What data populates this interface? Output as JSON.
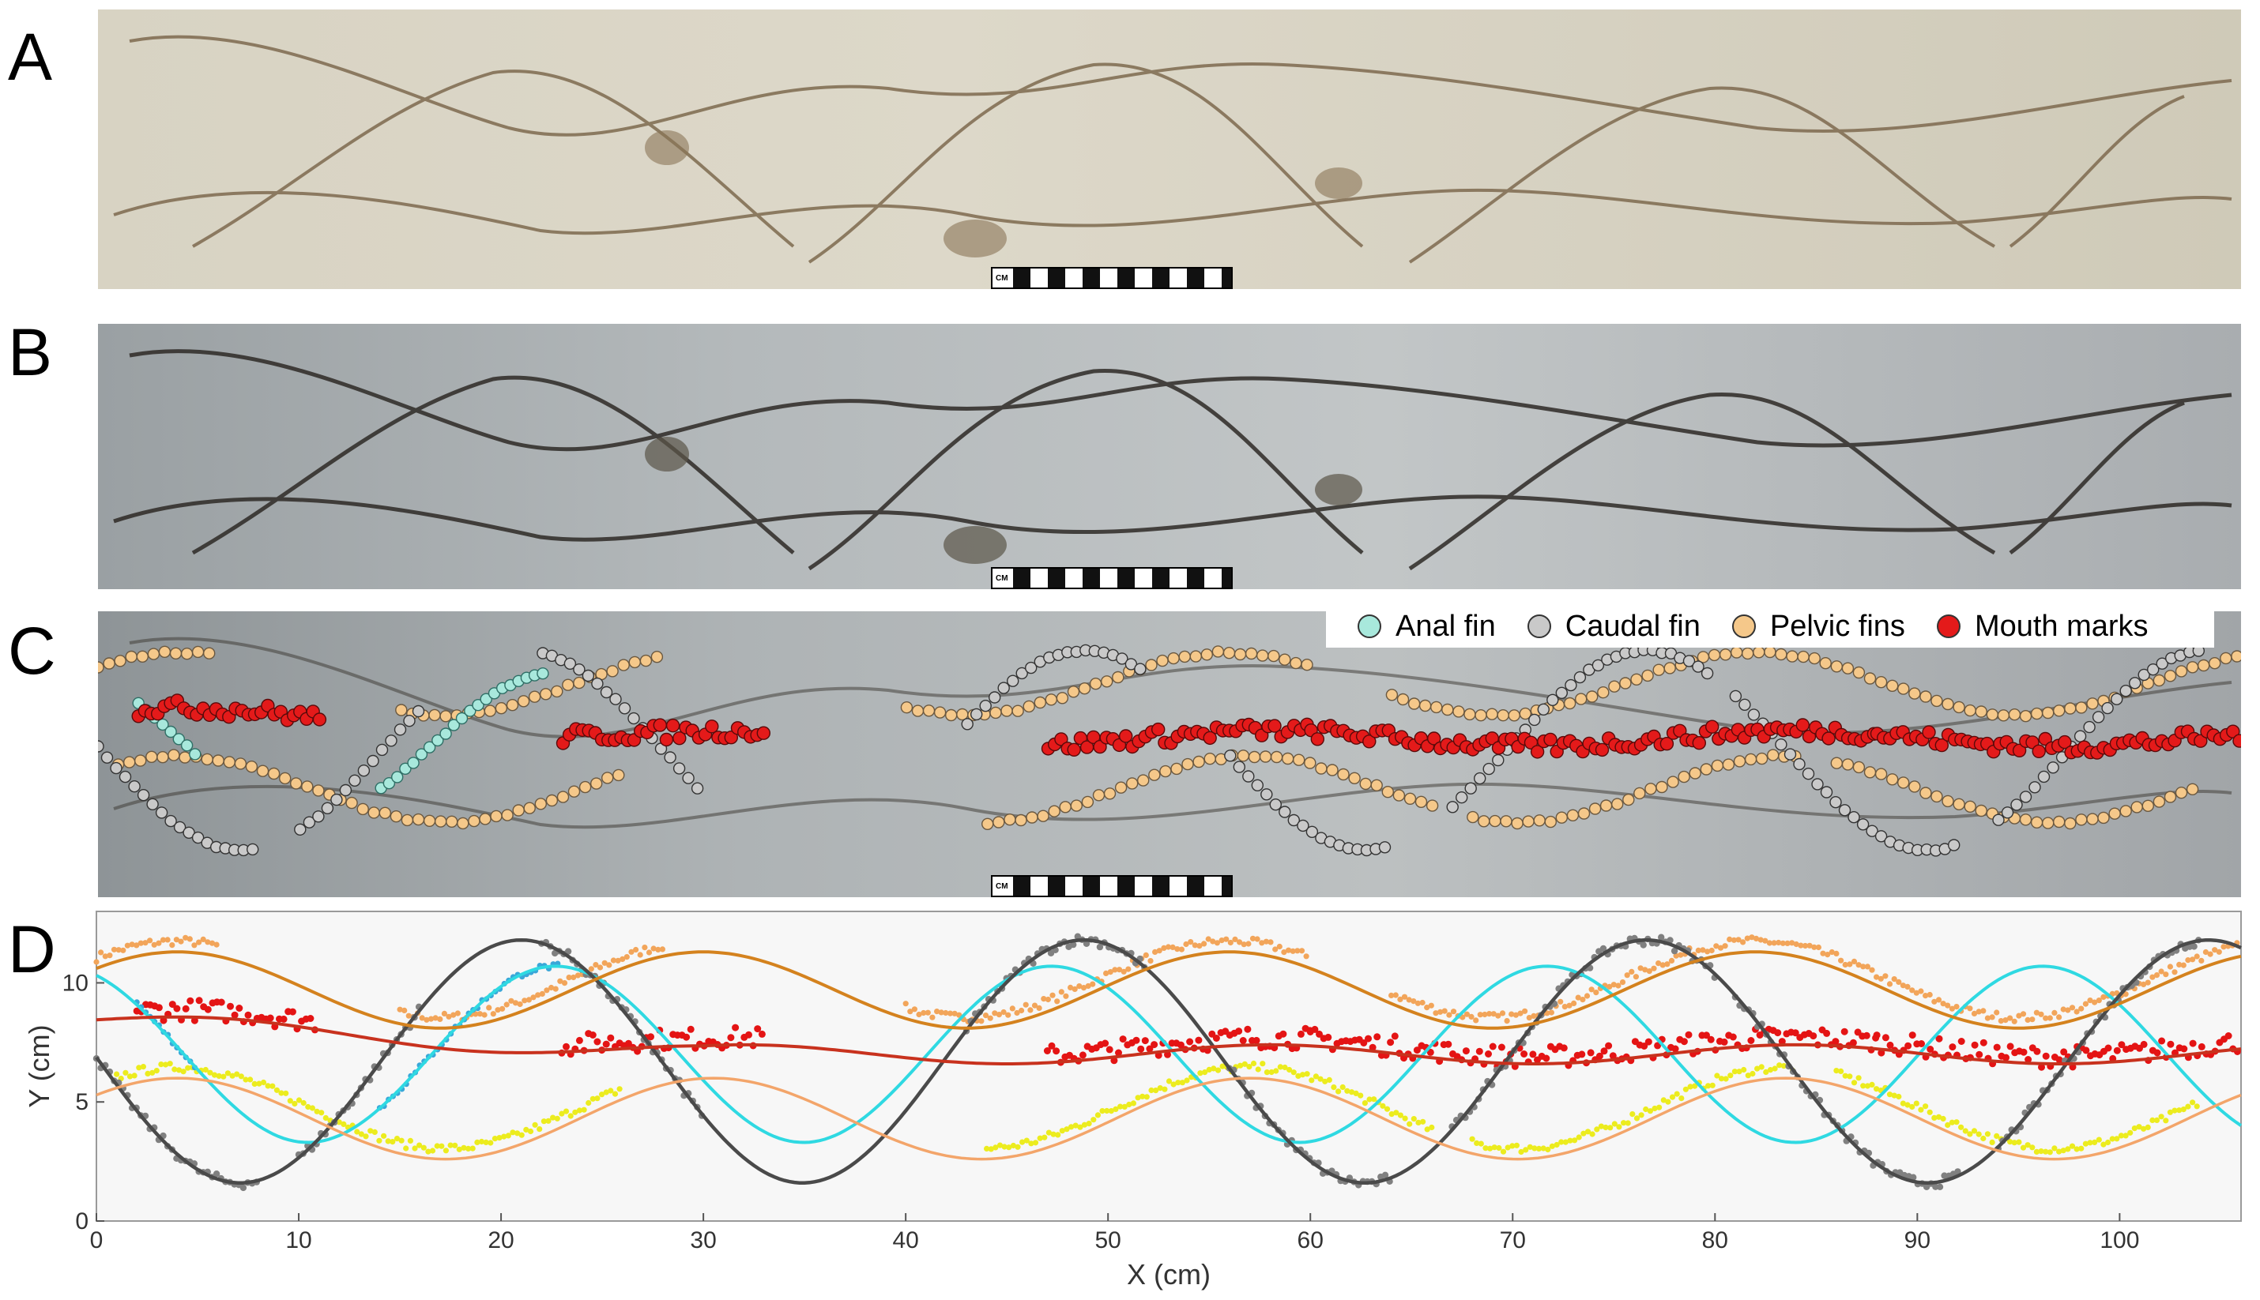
{
  "panels": {
    "a": "A",
    "b": "B",
    "c": "C",
    "d": "D"
  },
  "scale_bar_label": "CM",
  "legend": {
    "items": [
      {
        "label": "Anal fin",
        "color": "#a8e8dc"
      },
      {
        "label": "Caudal fin",
        "color": "#c9c9c9"
      },
      {
        "label": "Pelvic fins",
        "color": "#f5c88a"
      },
      {
        "label": "Mouth marks",
        "color": "#e41a1a"
      }
    ]
  },
  "colors": {
    "cyan": "#2fd9e2",
    "gray": "#4a4a4a",
    "pelvic_upper": "#d4821e",
    "pelvic_lower": "#f3a56a",
    "mouth": "#c8321e",
    "pts_orange": "#f2a55a",
    "pts_yellow": "#ecec1e",
    "pts_red": "#e41414",
    "pts_gray": "#808080",
    "pts_blue": "#3aa7d8"
  },
  "chart_data": {
    "type": "scatter",
    "xlabel": "X (cm)",
    "ylabel": "Y (cm)",
    "xlim": [
      0,
      106
    ],
    "ylim": [
      0,
      13
    ],
    "xticks": [
      0,
      10,
      20,
      30,
      40,
      50,
      60,
      70,
      80,
      90,
      100
    ],
    "yticks": [
      0,
      5,
      10
    ],
    "grid": false,
    "series": [
      {
        "role": "fit",
        "color": "cyan",
        "mean": 7.0,
        "amp": 3.7,
        "period": 24.5,
        "phase_x": 22.7
      },
      {
        "role": "fit",
        "color": "gray",
        "mean": 6.7,
        "amp": 5.1,
        "period": 27.8,
        "phase_x": 21.0
      },
      {
        "role": "fit",
        "color": "pelvic_upper",
        "mean": 9.7,
        "amp": 1.6,
        "period": 26.0,
        "phase_x": 4.0
      },
      {
        "role": "fit",
        "color": "pelvic_lower",
        "mean": 4.3,
        "amp": 1.7,
        "period": 26.5,
        "phase_x": 4.0
      },
      {
        "role": "fit",
        "color": "mouth",
        "mean": 7.4,
        "amp": 0.4,
        "period": 26.0,
        "phase_x": 6.0,
        "trend": [
          [
            0,
            8.4
          ],
          [
            30,
            7.0
          ],
          [
            106,
            7.0
          ]
        ]
      }
    ]
  }
}
